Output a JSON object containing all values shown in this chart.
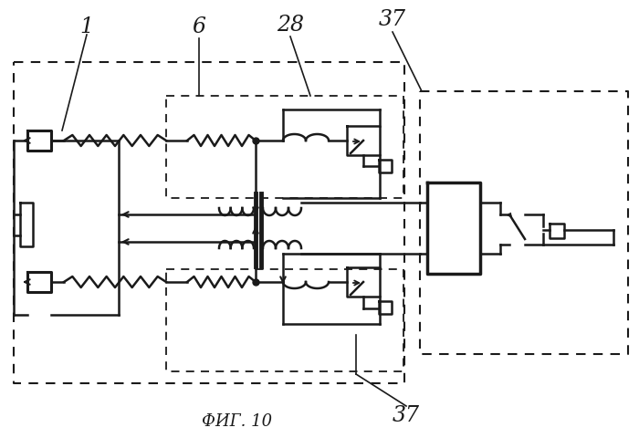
{
  "bg_color": "#ffffff",
  "lc": "#1a1a1a",
  "figsize": [
    7.0,
    4.8
  ],
  "dpi": 100,
  "title": "ФИГ. 10"
}
